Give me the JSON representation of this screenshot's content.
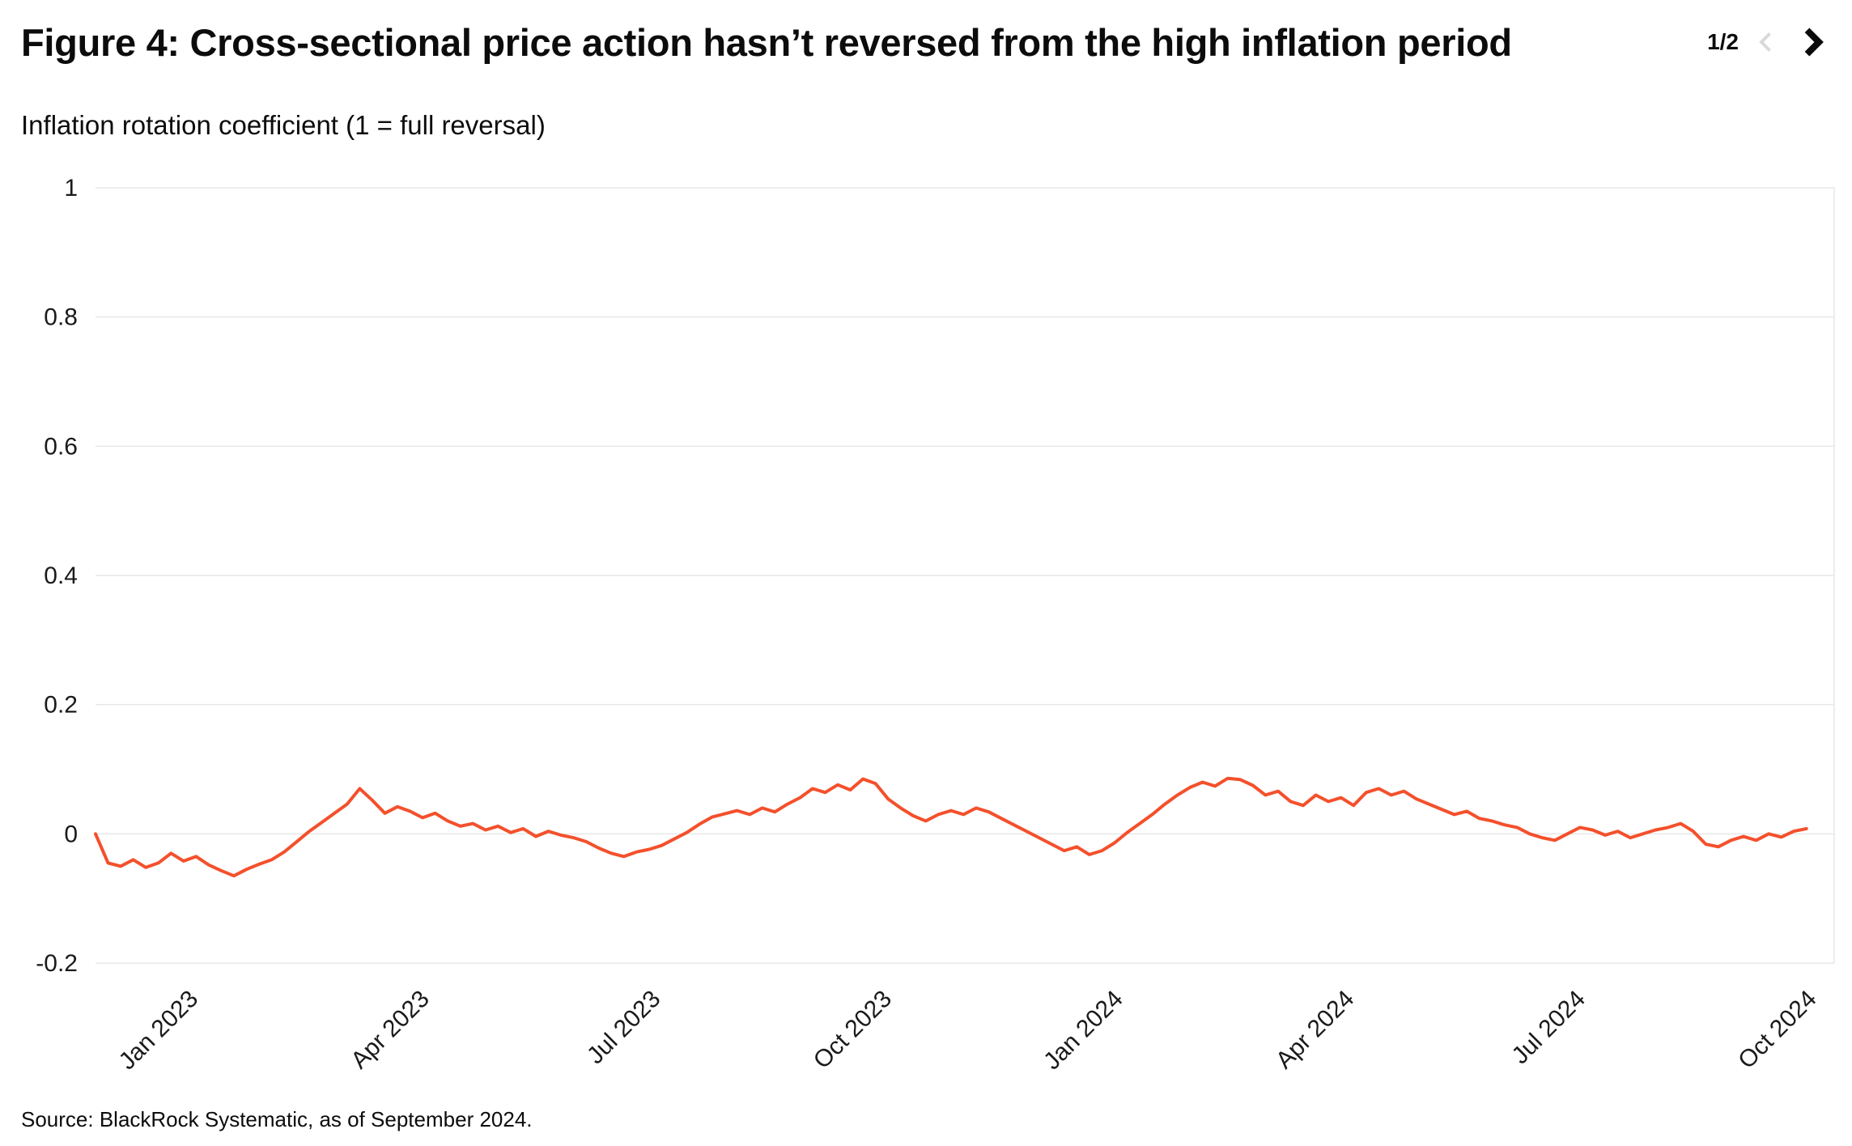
{
  "header": {
    "title": "Figure 4: Cross-sectional price action hasn’t reversed from the high inflation period",
    "pagination": "1/2",
    "icons": {
      "prev": "chevron-left",
      "next": "chevron-right"
    },
    "colors": {
      "prev_chevron": "#d9d9d9",
      "next_chevron": "#0a0a0a"
    }
  },
  "footer": {
    "source": "Source: BlackRock Systematic, as of September 2024."
  },
  "chart_data": {
    "type": "line",
    "title": "Inflation rotation coefficient (1 = full reversal)",
    "x_domain": [
      2022.9,
      2024.78
    ],
    "x_data_range": [
      2022.9,
      2024.75
    ],
    "ylim": [
      -0.2,
      1
    ],
    "yticks": [
      1,
      0.8,
      0.6,
      0.4,
      0.2,
      0,
      -0.2
    ],
    "ytick_labels": [
      "1",
      "0.8",
      "0.6",
      "0.4",
      "0.2",
      "0",
      "-0.2"
    ],
    "xticks": [
      {
        "x": 2023.0,
        "label": "Jan 2023"
      },
      {
        "x": 2023.25,
        "label": "Apr 2023"
      },
      {
        "x": 2023.5,
        "label": "Jul 2023"
      },
      {
        "x": 2023.75,
        "label": "Oct 2023"
      },
      {
        "x": 2024.0,
        "label": "Jan 2024"
      },
      {
        "x": 2024.25,
        "label": "Apr 2024"
      },
      {
        "x": 2024.5,
        "label": "Jul 2024"
      },
      {
        "x": 2024.75,
        "label": "Oct 2024"
      }
    ],
    "grid": true,
    "grid_color": "#e7e7e7",
    "legend_position": "none",
    "series": [
      {
        "name": "Inflation rotation coefficient",
        "color": "#F4502C",
        "values": [
          0.0,
          -0.045,
          -0.05,
          -0.04,
          -0.052,
          -0.045,
          -0.03,
          -0.042,
          -0.035,
          -0.048,
          -0.057,
          -0.065,
          -0.055,
          -0.047,
          -0.04,
          -0.028,
          -0.012,
          0.004,
          0.018,
          0.032,
          0.046,
          0.07,
          0.052,
          0.032,
          0.042,
          0.035,
          0.025,
          0.032,
          0.02,
          0.012,
          0.016,
          0.006,
          0.012,
          0.002,
          0.008,
          -0.004,
          0.004,
          -0.002,
          -0.006,
          -0.012,
          -0.022,
          -0.03,
          -0.035,
          -0.028,
          -0.024,
          -0.018,
          -0.008,
          0.002,
          0.015,
          0.026,
          0.031,
          0.036,
          0.03,
          0.04,
          0.034,
          0.046,
          0.056,
          0.07,
          0.064,
          0.076,
          0.068,
          0.085,
          0.078,
          0.054,
          0.04,
          0.028,
          0.02,
          0.03,
          0.036,
          0.03,
          0.04,
          0.034,
          0.024,
          0.014,
          0.004,
          -0.006,
          -0.016,
          -0.026,
          -0.02,
          -0.032,
          -0.026,
          -0.014,
          0.002,
          0.016,
          0.03,
          0.046,
          0.06,
          0.072,
          0.08,
          0.074,
          0.086,
          0.084,
          0.075,
          0.06,
          0.066,
          0.05,
          0.044,
          0.06,
          0.05,
          0.056,
          0.044,
          0.064,
          0.07,
          0.06,
          0.066,
          0.054,
          0.046,
          0.038,
          0.03,
          0.035,
          0.024,
          0.02,
          0.014,
          0.01,
          0.0,
          -0.006,
          -0.01,
          0.0,
          0.01,
          0.006,
          -0.002,
          0.004,
          -0.006,
          0.0,
          0.006,
          0.01,
          0.016,
          0.004,
          -0.016,
          -0.02,
          -0.01,
          -0.004,
          -0.01,
          0.0,
          -0.005,
          0.004,
          0.008
        ]
      }
    ]
  }
}
